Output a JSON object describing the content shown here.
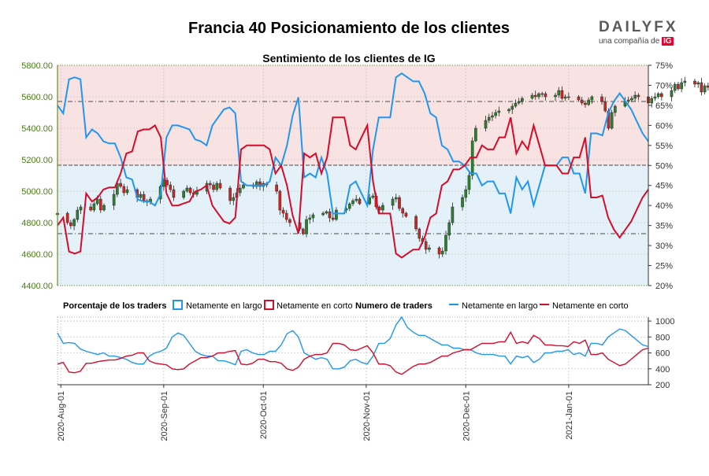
{
  "header": {
    "title": "Francia 40 Posicionamiento de los clientes",
    "subtitle": "Sentimiento de los clientes de IG"
  },
  "brand": {
    "name_prefix": "DAILY",
    "name_suffix": "FX",
    "tagline": "una compañía de",
    "ig": "IG"
  },
  "colors": {
    "long": "#2196f3",
    "short": "#d50c2a",
    "candle_up": "#2e7d32",
    "candle_down": "#c62828",
    "upper_zone": "#f9e2e2",
    "lower_zone": "#e4f1f9",
    "price_axis": "#4a7a1a",
    "dotted_border": "#6b8e23"
  },
  "legend": {
    "pct_title": "Porcentaje de los traders",
    "pct_long": "Netamente en largo",
    "pct_short": "Netamente en corto",
    "num_title": "Numero de traders",
    "num_long": "Netamente en largo",
    "num_short": "Netamente en corto"
  },
  "chart_data": [
    {
      "type": "line",
      "subtitle": "Sentimiento de los clientes de IG",
      "y_left": {
        "ticks": [
          "5800.00",
          "5600.00",
          "5400.00",
          "5200.00",
          "5000.00",
          "4800.00",
          "4600.00",
          "4400.00"
        ],
        "range": [
          4400,
          5800
        ]
      },
      "y_right": {
        "ticks": [
          "75%",
          "70%",
          "65%",
          "60%",
          "55%",
          "50%",
          "45%",
          "40%",
          "35%",
          "30%",
          "25%",
          "20%"
        ],
        "range": [
          20,
          75
        ]
      },
      "x_ticks": [
        "2020-Aug-01",
        "2020-Sep-01",
        "2020-Oct-01",
        "2020-Nov-01",
        "2020-Dec-01",
        "2021-Jan-01"
      ],
      "x_range": [
        "2020-07-31",
        "2021-01-25"
      ],
      "reference_lines": {
        "price_dashed": [
          5570,
          5165,
          4730
        ]
      },
      "price_start": "2020-07-31",
      "price_close": [
        4860,
        4800,
        4780,
        4820,
        4880,
        4900,
        4880,
        4920,
        4950,
        4880,
        4910,
        4980,
        5050,
        5030,
        4990,
        5010,
        4960,
        4980,
        4940,
        4930,
        4950,
        5030,
        5070,
        5040,
        5010,
        4960,
        5000,
        5020,
        4990,
        4980,
        5000,
        5050,
        5040,
        5010,
        5050,
        5020,
        4940,
        4960,
        4990,
        5020,
        5040,
        5030,
        5060,
        5030,
        5050,
        5040,
        5000,
        4880,
        4860,
        4820,
        4800,
        4760,
        4730,
        4820,
        4830,
        4850,
        4860,
        4870,
        4830,
        4820,
        4880,
        4890,
        4920,
        4940,
        4950,
        4920,
        4960,
        4970,
        4900,
        4880,
        4910,
        4950,
        4960,
        4890,
        4860,
        4840,
        4760,
        4700,
        4680,
        4630,
        4640,
        4600,
        4620,
        4720,
        4800,
        4900,
        4960,
        5010,
        5100,
        5320,
        5400,
        5450,
        5470,
        5480,
        5500,
        5510,
        5520,
        5540,
        5560,
        5570,
        5590,
        5610,
        5600,
        5620,
        5620,
        5600,
        5610,
        5640,
        5590,
        5600,
        5600,
        5580,
        5560,
        5550,
        5580,
        5600,
        5570,
        5510,
        5400,
        5500,
        5540,
        5570,
        5580,
        5590,
        5610,
        5600,
        5560,
        5590,
        5600,
        5620,
        5600,
        5640,
        5680,
        5650,
        5690,
        5700,
        5680,
        5690,
        5630,
        5670,
        5660,
        5640,
        5600,
        5580,
        5560
      ],
      "series": [
        {
          "name": "Netamente en largo",
          "unit": "%",
          "start": "2020-07-31",
          "values": [
            65,
            63,
            71.5,
            72,
            71.5,
            57,
            59,
            58,
            56,
            55.5,
            55.5,
            52,
            47,
            46.5,
            41.5,
            41,
            41,
            40,
            43,
            57,
            60,
            60,
            59.5,
            59,
            56.5,
            56,
            55,
            60,
            62,
            64,
            64.5,
            63,
            46,
            45,
            45,
            45,
            45,
            46,
            52,
            50,
            55,
            62.5,
            67,
            47,
            48,
            47,
            52,
            48,
            38,
            38,
            38,
            45,
            46,
            43,
            40,
            54,
            62,
            62,
            62,
            72,
            73,
            72,
            71,
            71,
            68,
            63,
            62,
            55,
            54,
            51,
            51,
            50,
            48,
            48,
            45,
            46,
            46,
            43,
            43,
            38,
            47,
            44,
            46,
            40,
            45,
            50,
            50,
            50,
            52,
            52,
            48,
            48,
            43,
            58,
            58,
            57.5,
            63,
            66,
            68,
            66,
            64,
            61,
            58,
            56
          ]
        },
        {
          "name": "Netamente en corto",
          "unit": "%",
          "start": "2020-07-31",
          "values": [
            35,
            37,
            28.5,
            28,
            28.5,
            43,
            41,
            42,
            44,
            44.5,
            44.5,
            48,
            53,
            53.5,
            58.5,
            59,
            59,
            60,
            57,
            43,
            40,
            40,
            40.5,
            41,
            43.5,
            44,
            45,
            40,
            38,
            36,
            35.5,
            37,
            54,
            55,
            55,
            55,
            55,
            54,
            48,
            50,
            45,
            37.5,
            33,
            53,
            52,
            53,
            48,
            52,
            62,
            62,
            62,
            55,
            54,
            57,
            60,
            46,
            38,
            38,
            38,
            28,
            27,
            28,
            29,
            29,
            32,
            37,
            38,
            45,
            46,
            49,
            49,
            50,
            52,
            52,
            55,
            54,
            54,
            57,
            57,
            62,
            53,
            56,
            54,
            60,
            55,
            50,
            50,
            50,
            48,
            48,
            52,
            52,
            57,
            42,
            42,
            42.5,
            37,
            34,
            32,
            34,
            36,
            39,
            42,
            44
          ]
        },
        {
          "name": "Netamente en largo",
          "unit": "traders",
          "start": "2020-07-31",
          "values": [
            850,
            720,
            730,
            720,
            650,
            620,
            600,
            580,
            600,
            560,
            560,
            540,
            520,
            480,
            460,
            460,
            560,
            600,
            620,
            660,
            800,
            850,
            820,
            720,
            620,
            580,
            560,
            560,
            500,
            500,
            480,
            450,
            620,
            640,
            600,
            580,
            580,
            620,
            620,
            700,
            840,
            880,
            800,
            600,
            560,
            520,
            540,
            520,
            400,
            400,
            420,
            500,
            520,
            480,
            460,
            560,
            720,
            720,
            780,
            950,
            1050,
            920,
            860,
            820,
            820,
            780,
            740,
            700,
            700,
            660,
            660,
            640,
            640,
            600,
            580,
            580,
            580,
            560,
            560,
            460,
            560,
            540,
            560,
            480,
            520,
            600,
            600,
            620,
            620,
            640,
            580,
            600,
            560,
            720,
            720,
            700,
            800,
            850,
            900,
            880,
            820,
            760,
            700,
            680
          ]
        },
        {
          "name": "Netamente en corto",
          "unit": "traders",
          "start": "2020-07-31",
          "values": [
            460,
            480,
            360,
            350,
            370,
            470,
            470,
            490,
            500,
            510,
            510,
            530,
            560,
            570,
            600,
            600,
            500,
            470,
            460,
            450,
            400,
            390,
            400,
            460,
            500,
            540,
            540,
            560,
            600,
            600,
            620,
            630,
            460,
            450,
            470,
            520,
            520,
            490,
            490,
            470,
            400,
            380,
            420,
            520,
            560,
            580,
            580,
            600,
            720,
            720,
            700,
            640,
            630,
            660,
            690,
            600,
            460,
            460,
            440,
            360,
            330,
            380,
            430,
            460,
            460,
            480,
            520,
            560,
            560,
            600,
            620,
            640,
            640,
            680,
            720,
            720,
            720,
            740,
            740,
            860,
            720,
            740,
            720,
            820,
            780,
            700,
            700,
            690,
            690,
            680,
            740,
            720,
            760,
            580,
            580,
            600,
            520,
            480,
            440,
            460,
            520,
            580,
            640,
            660
          ]
        }
      ]
    }
  ]
}
